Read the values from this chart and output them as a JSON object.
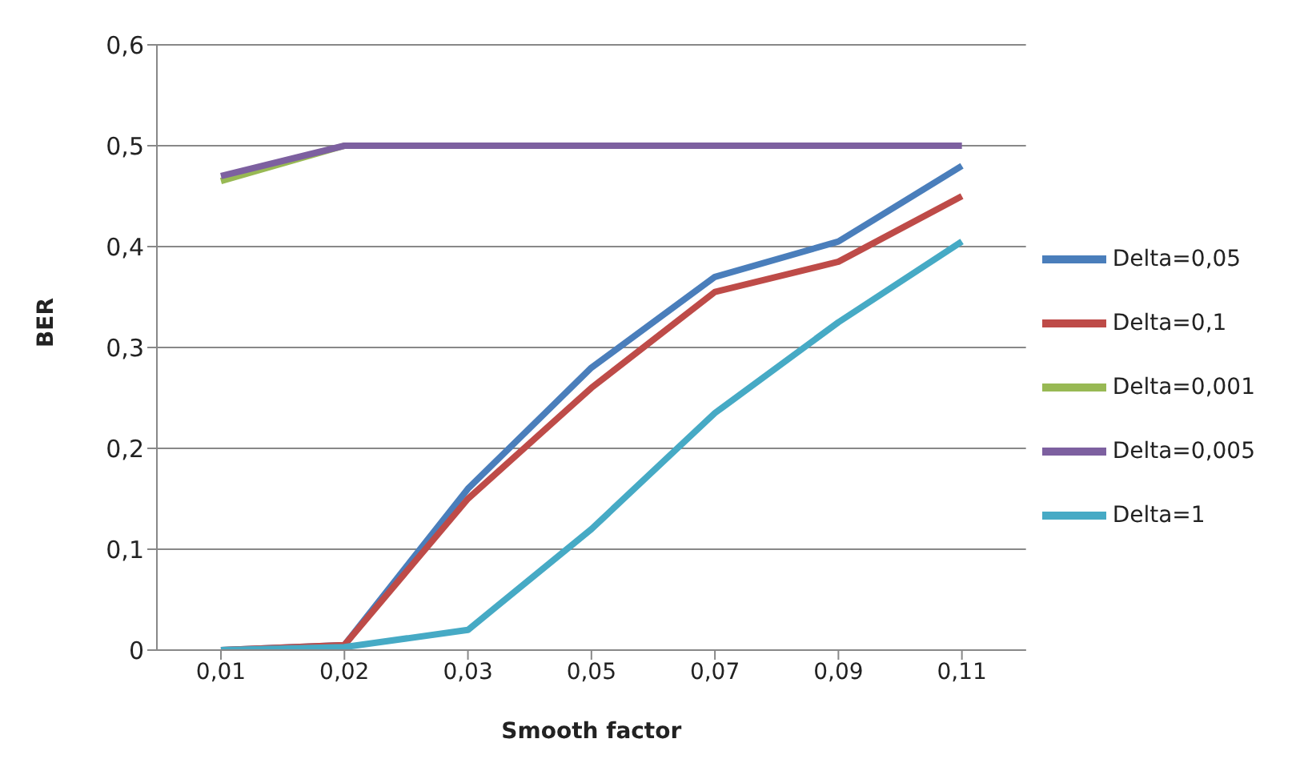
{
  "chart_data": {
    "type": "line",
    "xlabel": "Smooth factor",
    "ylabel": "BER",
    "categories": [
      "0,01",
      "0,02",
      "0,03",
      "0,05",
      "0,07",
      "0,09",
      "0,11"
    ],
    "series": [
      {
        "name": "Delta=0,05",
        "color": "#4a7ebb",
        "values": [
          0,
          0.005,
          0.16,
          0.28,
          0.37,
          0.405,
          0.48
        ]
      },
      {
        "name": "Delta=0,1",
        "color": "#be4b48",
        "values": [
          0,
          0.005,
          0.15,
          0.26,
          0.355,
          0.385,
          0.45
        ]
      },
      {
        "name": "Delta=0,001",
        "color": "#98b954",
        "values": [
          0.465,
          0.5,
          null,
          null,
          null,
          null,
          null
        ]
      },
      {
        "name": "Delta=0,005",
        "color": "#7d60a0",
        "values": [
          0.47,
          0.5,
          0.5,
          0.5,
          0.5,
          0.5,
          0.5
        ]
      },
      {
        "name": "Delta=1",
        "color": "#46aac5",
        "values": [
          0,
          0.003,
          0.02,
          0.12,
          0.235,
          0.325,
          0.405
        ]
      }
    ],
    "ylim": [
      0,
      0.6
    ],
    "yticks": [
      0,
      {
        "value": 0.1,
        "label": "0,1"
      },
      {
        "value": 0.2,
        "label": "0,2"
      },
      {
        "value": 0.3,
        "label": "0,3"
      },
      {
        "value": 0.4,
        "label": "0,4"
      },
      {
        "value": 0.5,
        "label": "0,5"
      },
      {
        "value": 0.6,
        "label": "0,6"
      }
    ],
    "grid": "y",
    "legend": "right",
    "marker": "none",
    "line_style": "solid"
  }
}
